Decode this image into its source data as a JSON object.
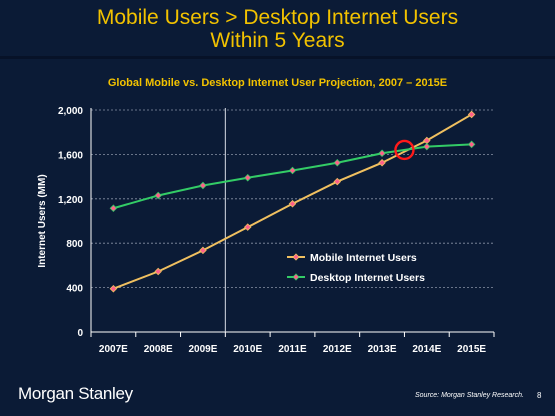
{
  "slide": {
    "title_line1": "Mobile Users > Desktop Internet Users",
    "title_line2": "Within 5 Years",
    "footer_logo": "Morgan Stanley",
    "footer_source": "Source: Morgan Stanley Research.",
    "page_number": "8"
  },
  "colors": {
    "background": "#0b1b36",
    "title": "#f2c200",
    "mobile_line": "#f0c060",
    "desktop_line": "#33cc66",
    "marker_fill": "#ff5f8a",
    "highlight_circle": "#ff1a1a",
    "grid": "#8a93a6",
    "axis_text": "#ffffff"
  },
  "chart_data": {
    "type": "line",
    "title": "Global Mobile vs. Desktop Internet User Projection, 2007 – 2015E",
    "xlabel": "",
    "ylabel": "Internet Users (MM)",
    "categories": [
      "2007E",
      "2008E",
      "2009E",
      "2010E",
      "2011E",
      "2012E",
      "2013E",
      "2014E",
      "2015E"
    ],
    "ylim": [
      0,
      2000
    ],
    "yticks": [
      "0",
      "400",
      "800",
      "1,200",
      "1,600",
      "2,000"
    ],
    "ytick_values": [
      0,
      400,
      800,
      1200,
      1600,
      2000
    ],
    "grid": "horizontal dashed",
    "divider_between": [
      "2009E",
      "2010E"
    ],
    "legend_placement": "center-right",
    "series": [
      {
        "name": "Mobile Internet Users",
        "values": [
          390,
          545,
          735,
          945,
          1155,
          1355,
          1525,
          1725,
          1960
        ],
        "color": "#f0c060"
      },
      {
        "name": "Desktop Internet Users",
        "values": [
          1115,
          1230,
          1320,
          1390,
          1455,
          1525,
          1610,
          1670,
          1690
        ],
        "color": "#33cc66"
      }
    ],
    "annotations": [
      {
        "type": "circle",
        "marks": "crossover",
        "x_between": [
          "2013E",
          "2014E"
        ],
        "y": 1640
      }
    ]
  }
}
